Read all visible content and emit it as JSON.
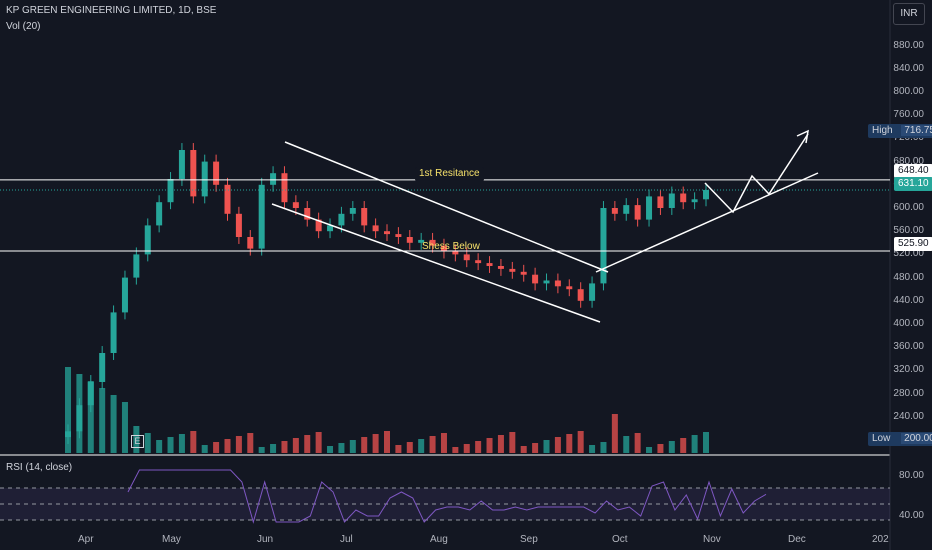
{
  "header": {
    "title": "KP GREEN ENGINEERING LIMITED, 1D, BSE",
    "volume_label": "Vol (20)",
    "currency": "INR",
    "rsi_label": "RSI (14, close)"
  },
  "price_axis": {
    "ticks": [
      "880.00",
      "840.00",
      "800.00",
      "760.00",
      "720.00",
      "680.00",
      "640.00",
      "600.00",
      "560.00",
      "520.00",
      "480.00",
      "440.00",
      "400.00",
      "360.00",
      "320.00",
      "280.00",
      "240.00",
      "200.00"
    ]
  },
  "rsi_axis": {
    "ticks": [
      "80.00",
      "40.00"
    ]
  },
  "time_axis": {
    "labels": [
      "Apr",
      "May",
      "Jun",
      "Jul",
      "Aug",
      "Sep",
      "Oct",
      "Nov",
      "Dec",
      "202"
    ]
  },
  "price_tags": {
    "high_label": "High",
    "high_value": "716.75",
    "low_label": "Low",
    "low_value": "200.00",
    "resistance_value": "648.40",
    "last_price": "631.10",
    "support_value": "525.90"
  },
  "annotations": {
    "resistance_text": "1st Resitance",
    "support_text": "Shess Below",
    "event_marker": "E"
  },
  "colors": {
    "background": "#131722",
    "up": "#26a69a",
    "down": "#ef5350",
    "vol_up": "#26a69a",
    "vol_down": "#ef5350",
    "rsi_line": "#7e57c2",
    "annotation": "#f7e26b",
    "lines": "#ffffff"
  },
  "chart_data": {
    "type": "candlestick",
    "title": "KP GREEN ENGINEERING LIMITED, 1D, BSE",
    "xlabel": "",
    "ylabel": "",
    "ylim": [
      200,
      900
    ],
    "x": [
      "Apr",
      "Apr",
      "Apr",
      "Apr",
      "Apr",
      "Apr",
      "Apr",
      "Apr",
      "May",
      "May",
      "May",
      "May",
      "May",
      "May",
      "May",
      "May",
      "May",
      "Jun",
      "Jun",
      "Jun",
      "Jun",
      "Jun",
      "Jun",
      "Jun",
      "Jun",
      "Jul",
      "Jul",
      "Jul",
      "Jul",
      "Jul",
      "Jul",
      "Jul",
      "Jul",
      "Aug",
      "Aug",
      "Aug",
      "Aug",
      "Aug",
      "Aug",
      "Aug",
      "Aug",
      "Sep",
      "Sep",
      "Sep",
      "Sep",
      "Sep",
      "Sep",
      "Sep",
      "Oct",
      "Oct",
      "Oct",
      "Oct",
      "Oct",
      "Oct",
      "Oct",
      "Oct",
      "Oct"
    ],
    "close": [
      215,
      260,
      300,
      350,
      420,
      480,
      520,
      570,
      610,
      650,
      700,
      620,
      680,
      640,
      590,
      550,
      530,
      640,
      660,
      610,
      600,
      580,
      560,
      570,
      590,
      600,
      570,
      560,
      555,
      550,
      540,
      545,
      535,
      525,
      520,
      510,
      505,
      500,
      495,
      490,
      485,
      470,
      475,
      465,
      460,
      440,
      470,
      600,
      590,
      605,
      580,
      620,
      600,
      625,
      610,
      615,
      631.1
    ],
    "levels": {
      "high": 716.75,
      "low": 200.0,
      "resistance": 648.4,
      "support": 525.9,
      "last": 631.1
    },
    "rsi_ticks": [
      80,
      40
    ],
    "volume_label": "Vol (20)"
  }
}
